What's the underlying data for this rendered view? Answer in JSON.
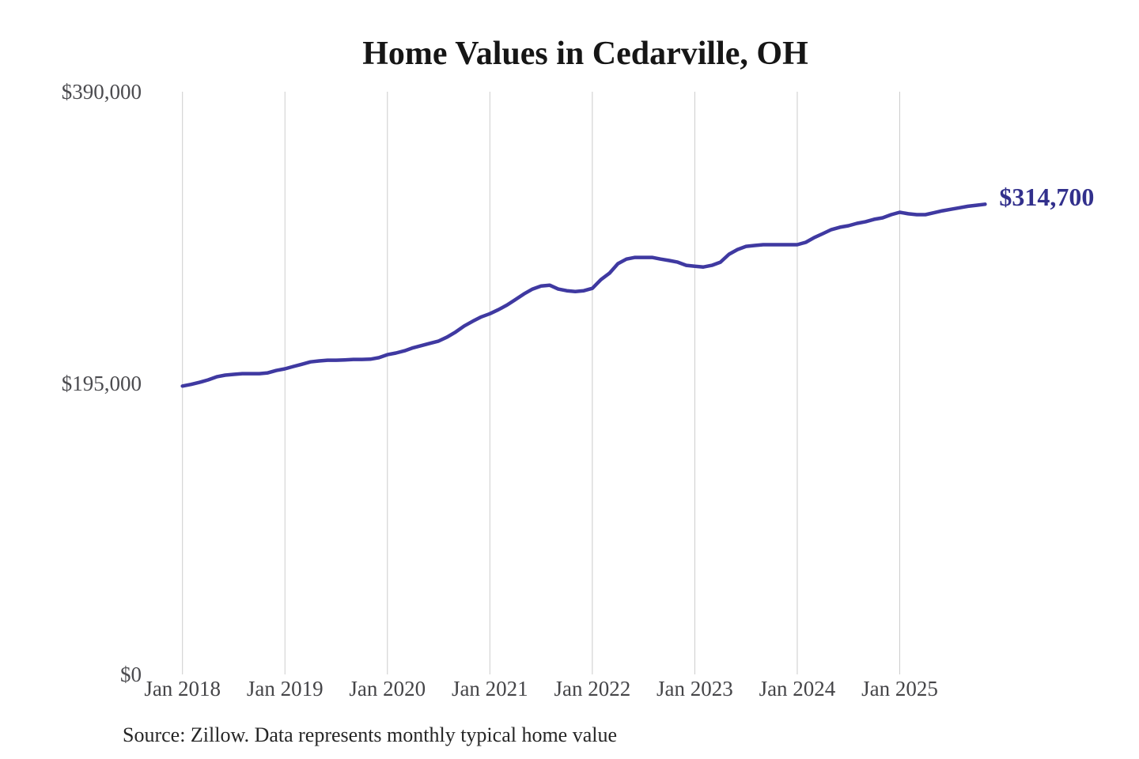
{
  "chart": {
    "title": "Home Values in Cedarville, OH",
    "end_label": "$314,700",
    "source_note": "Source: Zillow. Data represents monthly typical home value"
  },
  "chart_data": {
    "type": "line",
    "title": "Home Values in Cedarville, OH",
    "series_name": "Monthly typical home value",
    "frequency": "monthly",
    "x_start": "2018-01",
    "x_end": "2025-11",
    "x": [
      "2018-01",
      "2018-02",
      "2018-03",
      "2018-04",
      "2018-05",
      "2018-06",
      "2018-07",
      "2018-08",
      "2018-09",
      "2018-10",
      "2018-11",
      "2018-12",
      "2019-01",
      "2019-02",
      "2019-03",
      "2019-04",
      "2019-05",
      "2019-06",
      "2019-07",
      "2019-08",
      "2019-09",
      "2019-10",
      "2019-11",
      "2019-12",
      "2020-01",
      "2020-02",
      "2020-03",
      "2020-04",
      "2020-05",
      "2020-06",
      "2020-07",
      "2020-08",
      "2020-09",
      "2020-10",
      "2020-11",
      "2020-12",
      "2021-01",
      "2021-02",
      "2021-03",
      "2021-04",
      "2021-05",
      "2021-06",
      "2021-07",
      "2021-08",
      "2021-09",
      "2021-10",
      "2021-11",
      "2021-12",
      "2022-01",
      "2022-02",
      "2022-03",
      "2022-04",
      "2022-05",
      "2022-06",
      "2022-07",
      "2022-08",
      "2022-09",
      "2022-10",
      "2022-11",
      "2022-12",
      "2023-01",
      "2023-02",
      "2023-03",
      "2023-04",
      "2023-05",
      "2023-06",
      "2023-07",
      "2023-08",
      "2023-09",
      "2023-10",
      "2023-11",
      "2023-12",
      "2024-01",
      "2024-02",
      "2024-03",
      "2024-04",
      "2024-05",
      "2024-06",
      "2024-07",
      "2024-08",
      "2024-09",
      "2024-10",
      "2024-11",
      "2024-12",
      "2025-01",
      "2025-02",
      "2025-03",
      "2025-04",
      "2025-05",
      "2025-06",
      "2025-07",
      "2025-08",
      "2025-09",
      "2025-10",
      "2025-11"
    ],
    "values": [
      193000,
      194100,
      195500,
      197100,
      199200,
      200300,
      200800,
      201300,
      201300,
      201300,
      201800,
      203400,
      204500,
      206100,
      207600,
      209200,
      209800,
      210300,
      210300,
      210500,
      210800,
      210800,
      211000,
      212000,
      214000,
      215100,
      216600,
      218600,
      220100,
      221600,
      223100,
      225800,
      229200,
      233200,
      236400,
      239300,
      241400,
      244100,
      247200,
      250900,
      254700,
      257900,
      260000,
      260500,
      257900,
      256800,
      256300,
      256800,
      258400,
      264200,
      268500,
      274900,
      278000,
      279100,
      279100,
      279100,
      278000,
      277000,
      275900,
      273800,
      273200,
      272700,
      273800,
      275900,
      281200,
      284400,
      286500,
      287100,
      287600,
      287600,
      287600,
      287600,
      287600,
      289200,
      292400,
      295000,
      297700,
      299300,
      300300,
      301900,
      303000,
      304600,
      305600,
      307700,
      309300,
      308300,
      307700,
      307700,
      309000,
      310300,
      311300,
      312300,
      313300,
      314000,
      314700
    ],
    "end_value": 314700,
    "end_value_label": "$314,700",
    "x_tick_labels": [
      "Jan 2018",
      "Jan 2019",
      "Jan 2020",
      "Jan 2021",
      "Jan 2022",
      "Jan 2023",
      "Jan 2024",
      "Jan 2025"
    ],
    "y_tick_labels": [
      "$0",
      "$195,000",
      "$390,000"
    ],
    "y_ticks": [
      0,
      195000,
      390000
    ],
    "ylim": [
      0,
      390000
    ],
    "grid": "vertical-only",
    "legend": "none",
    "line_color": "#3F39A1",
    "end_label_color": "#32308C",
    "grid_color": "#CCCCCC",
    "source_note": "Source: Zillow. Data represents monthly typical home value"
  }
}
